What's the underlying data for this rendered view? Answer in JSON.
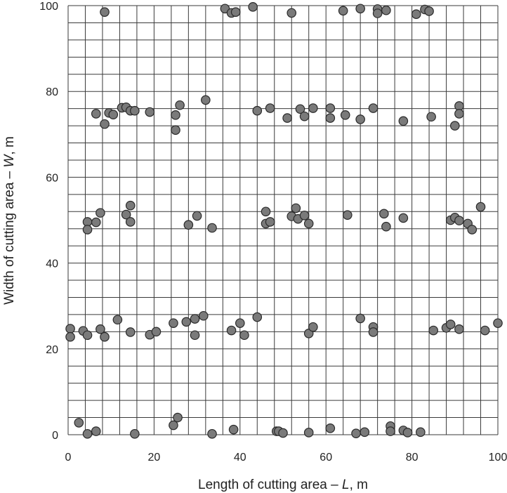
{
  "chart_data": {
    "type": "scatter",
    "xlabel_parts": [
      "Length of cutting area – ",
      "L",
      ", m"
    ],
    "ylabel_parts": [
      "Width of cutting area – ",
      "W",
      ", m"
    ],
    "xlim": [
      0,
      100
    ],
    "ylim": [
      0,
      100
    ],
    "x_ticks": [
      "0",
      "20",
      "40",
      "60",
      "80",
      "100"
    ],
    "y_ticks": [
      "0",
      "20",
      "40",
      "60",
      "80",
      "100"
    ],
    "grid": true,
    "colors": {
      "marker_fill": "#7a7a7a",
      "marker_edge": "#2a2a2a",
      "grid": "#3a3a3a"
    },
    "points": [
      [
        8.5,
        98.5
      ],
      [
        36.5,
        99.3
      ],
      [
        38,
        98.3
      ],
      [
        39,
        98.5
      ],
      [
        43,
        99.7
      ],
      [
        52,
        98.3
      ],
      [
        64,
        98.8
      ],
      [
        68,
        99.3
      ],
      [
        72,
        99.2
      ],
      [
        72,
        98.2
      ],
      [
        74,
        98.9
      ],
      [
        81,
        98
      ],
      [
        83,
        99.1
      ],
      [
        84,
        98.7
      ],
      [
        6.5,
        74.8
      ],
      [
        8.5,
        72.4
      ],
      [
        9.5,
        75
      ],
      [
        10.5,
        74.6
      ],
      [
        12.5,
        76.2
      ],
      [
        13.5,
        76.3
      ],
      [
        14.5,
        75.5
      ],
      [
        15.5,
        75.5
      ],
      [
        19,
        75.2
      ],
      [
        25,
        74.5
      ],
      [
        25,
        71
      ],
      [
        26,
        76.8
      ],
      [
        32,
        78
      ],
      [
        44,
        75.5
      ],
      [
        47,
        76.1
      ],
      [
        51,
        73.8
      ],
      [
        54,
        75.9
      ],
      [
        55,
        74.2
      ],
      [
        57,
        76.1
      ],
      [
        61,
        76.1
      ],
      [
        61,
        73.8
      ],
      [
        64.5,
        74.5
      ],
      [
        68,
        73.5
      ],
      [
        71,
        76.1
      ],
      [
        78,
        73.1
      ],
      [
        84.5,
        74.1
      ],
      [
        90,
        72
      ],
      [
        91,
        76.6
      ],
      [
        91,
        74.8
      ],
      [
        4.5,
        49.6
      ],
      [
        4.5,
        47.8
      ],
      [
        6.5,
        49.5
      ],
      [
        7.5,
        51.7
      ],
      [
        13.5,
        51.3
      ],
      [
        14.5,
        49.6
      ],
      [
        14.5,
        53.4
      ],
      [
        28,
        48.9
      ],
      [
        30,
        51
      ],
      [
        33.5,
        48.2
      ],
      [
        46,
        52
      ],
      [
        46,
        49.2
      ],
      [
        47,
        49.6
      ],
      [
        52,
        50.9
      ],
      [
        53,
        52.8
      ],
      [
        53.5,
        50.3
      ],
      [
        55,
        51.1
      ],
      [
        56,
        49.2
      ],
      [
        65,
        51.2
      ],
      [
        73.5,
        51.5
      ],
      [
        74,
        48.5
      ],
      [
        78,
        50.5
      ],
      [
        89,
        50
      ],
      [
        90,
        50.6
      ],
      [
        91,
        49.9
      ],
      [
        93,
        49.2
      ],
      [
        94,
        47.8
      ],
      [
        96,
        53.1
      ],
      [
        0.5,
        24.7
      ],
      [
        0.5,
        22.8
      ],
      [
        3.5,
        24.2
      ],
      [
        4.5,
        23.2
      ],
      [
        7.5,
        24.6
      ],
      [
        8.5,
        22.8
      ],
      [
        11.5,
        26.8
      ],
      [
        14.5,
        23.9
      ],
      [
        19,
        23.3
      ],
      [
        20.5,
        24
      ],
      [
        24.5,
        26
      ],
      [
        27.5,
        26.3
      ],
      [
        29.5,
        23.2
      ],
      [
        29.5,
        27
      ],
      [
        31.5,
        27.7
      ],
      [
        38,
        24.3
      ],
      [
        40,
        26
      ],
      [
        41,
        23.2
      ],
      [
        44,
        27.4
      ],
      [
        56,
        23.6
      ],
      [
        57,
        25.1
      ],
      [
        68,
        27.1
      ],
      [
        71,
        25.1
      ],
      [
        71,
        23.9
      ],
      [
        85,
        24.3
      ],
      [
        88,
        24.9
      ],
      [
        89,
        25.7
      ],
      [
        91,
        24.6
      ],
      [
        97,
        24.3
      ],
      [
        100,
        26
      ],
      [
        2.5,
        2.8
      ],
      [
        4.5,
        0.2
      ],
      [
        6.5,
        0.8
      ],
      [
        15.5,
        0.2
      ],
      [
        24.5,
        2.2
      ],
      [
        25.5,
        4
      ],
      [
        33.5,
        0.2
      ],
      [
        38.5,
        1.2
      ],
      [
        48.5,
        0.8
      ],
      [
        49,
        0.8
      ],
      [
        50,
        0.4
      ],
      [
        56,
        0.5
      ],
      [
        61,
        1.5
      ],
      [
        67,
        0.3
      ],
      [
        69,
        0.6
      ],
      [
        75,
        2
      ],
      [
        75,
        0.8
      ],
      [
        78,
        1
      ],
      [
        79,
        0.5
      ],
      [
        82,
        0.6
      ]
    ]
  }
}
